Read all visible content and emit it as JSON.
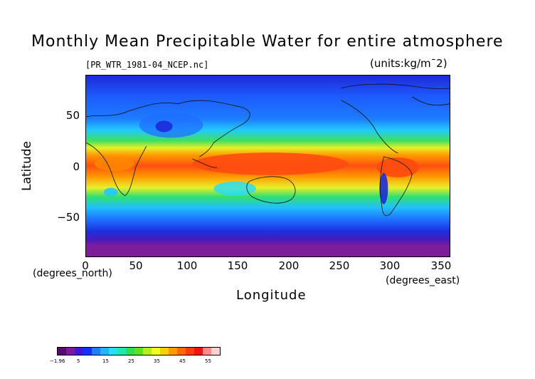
{
  "title": "Monthly Mean Precipitable Water for entire atmosphere",
  "file_label": "[PR_WTR_1981-04_NCEP.nc]",
  "units": "(units:kg/m¯2)",
  "y_axis": {
    "label": "Latitude",
    "ticks": [
      "50",
      "0",
      "−50"
    ]
  },
  "x_axis": {
    "label": "Longitude",
    "ticks": [
      "0",
      "50",
      "100",
      "150",
      "200",
      "250",
      "300",
      "350"
    ],
    "unit_left": "(degrees_north)",
    "unit_right": "(degrees_east)"
  },
  "colorbar": {
    "labels": [
      "−1.96",
      "5",
      "15",
      "25",
      "35",
      "45",
      "55"
    ],
    "colors": [
      "#5a0a6e",
      "#7a1aa0",
      "#3a1ad8",
      "#1230ff",
      "#1f7cff",
      "#22b4ff",
      "#24e0f0",
      "#1ee8b0",
      "#2ee050",
      "#60e020",
      "#b0f020",
      "#f0ff20",
      "#ffd000",
      "#ff9a00",
      "#ff6a00",
      "#ff3a10",
      "#ee1414",
      "#ff8a8a",
      "#ffd0d0"
    ]
  },
  "map_colors": {
    "polar_south": "#7e1d9a",
    "deep_blue": "#1d2ad8",
    "mid_blue": "#1e6cff",
    "cyan": "#20dcff",
    "green": "#38e85a",
    "yellow": "#f0f226",
    "orange": "#ff9a00",
    "red": "#ff4a10"
  }
}
